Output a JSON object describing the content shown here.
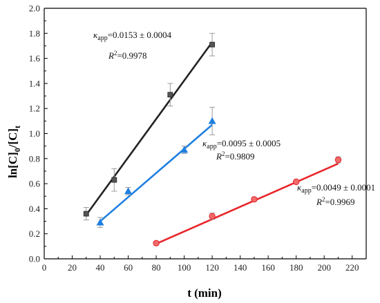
{
  "chart_data": {
    "type": "scatter",
    "xlabel": "t (min)",
    "ylabel": "ln[C]0/[C]t",
    "ylabel_parts": {
      "a": "ln[C]",
      "b": "0",
      "c": "/[C]",
      "d": "t"
    },
    "xlim": [
      0,
      230
    ],
    "ylim": [
      0.0,
      2.0
    ],
    "xticks": [
      0,
      20,
      40,
      60,
      80,
      100,
      120,
      140,
      160,
      180,
      200,
      220
    ],
    "yticks": [
      0.0,
      0.2,
      0.4,
      0.6,
      0.8,
      1.0,
      1.2,
      1.4,
      1.6,
      1.8,
      2.0
    ],
    "grid": false,
    "series": [
      {
        "color": "#222222",
        "marker": "square",
        "x": [
          30,
          50,
          90,
          120
        ],
        "y": [
          0.36,
          0.63,
          1.31,
          1.71
        ],
        "yerr": [
          0.05,
          0.09,
          0.09,
          0.09
        ],
        "fit": {
          "x": [
            30,
            120
          ],
          "y": [
            0.35,
            1.73
          ]
        },
        "annotation": {
          "kapp": "0.0153 ± 0.0004",
          "r2": "0.9978"
        }
      },
      {
        "color": "#1f7fe0",
        "marker": "triangle",
        "x": [
          40,
          60,
          100,
          120
        ],
        "y": [
          0.29,
          0.54,
          0.87,
          1.1
        ],
        "yerr": [
          0.04,
          0.03,
          0.03,
          0.11
        ],
        "fit": {
          "x": [
            40,
            120
          ],
          "y": [
            0.3,
            1.07
          ]
        },
        "annotation": {
          "kapp": "0.0095 ± 0.0005",
          "r2": "0.9809"
        }
      },
      {
        "color": "#e8262b",
        "marker": "circle",
        "x": [
          80,
          120,
          150,
          180,
          210
        ],
        "y": [
          0.125,
          0.34,
          0.475,
          0.615,
          0.79
        ],
        "yerr": [
          0.015,
          0.025,
          0.015,
          0.01,
          0.025
        ],
        "fit": {
          "x": [
            80,
            210
          ],
          "y": [
            0.12,
            0.76
          ]
        },
        "annotation": {
          "kapp": "0.0049 ± 0.0001",
          "r2": "0.9969"
        }
      }
    ],
    "annotation_labels": {
      "k": "κ",
      "k_sub": "app",
      "eq": "=",
      "r": "R",
      "r_sup": "2"
    }
  }
}
